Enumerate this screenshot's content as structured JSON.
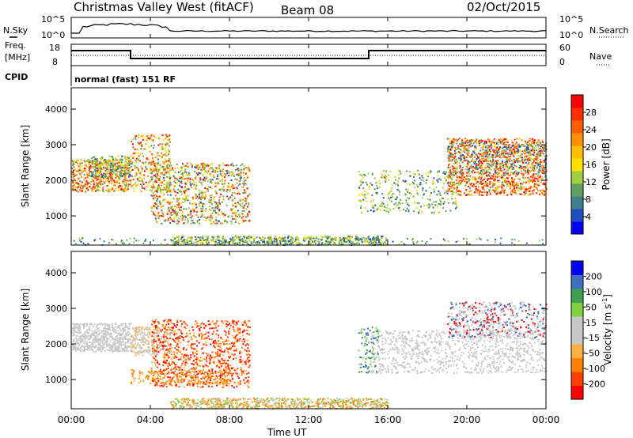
{
  "header": {
    "station": "Christmas Valley West (fitACF)",
    "beam": "Beam 08",
    "date": "02/Oct/2015"
  },
  "summary": {
    "nsky_label": "N.Sky",
    "nsearch_label": "N.Search",
    "nsky_ticks": [
      "10^5",
      "10^0"
    ],
    "nsearch_ticks": [
      "10^5",
      "10^0"
    ],
    "freq_label_1": "Freq.",
    "freq_label_2": "[MHz]",
    "freq_ticks": [
      "18",
      "8"
    ],
    "nave_label": "Nave",
    "nave_ticks": [
      "60",
      "0"
    ],
    "cpid_label": "CPID",
    "cpid_value": "normal (fast) 151 RF"
  },
  "chart_data": [
    {
      "type": "heatmap",
      "name": "power",
      "ylabel": "Slant Range [km]",
      "ytick_labels": [
        "4000",
        "3000",
        "2000",
        "1000"
      ],
      "yticks": [
        4000,
        3000,
        2000,
        1000
      ],
      "ylim": [
        180,
        4600
      ],
      "xlim": [
        "00:00",
        "24:00"
      ],
      "colorbar": {
        "label": "Power [dB]",
        "tick_labels": [
          "28",
          "24",
          "20",
          "16",
          "12",
          "8",
          "4"
        ],
        "colors": [
          "#0000ff",
          "#1f4fbf",
          "#3f7f8f",
          "#5f9f5f",
          "#9fcf3f",
          "#ffe000",
          "#ffbf00",
          "#ff8f00",
          "#ff5f00",
          "#ff2f00",
          "#ff0000"
        ]
      }
    },
    {
      "type": "heatmap",
      "name": "velocity",
      "ylabel": "Slant Range [km]",
      "ytick_labels": [
        "4000",
        "3000",
        "2000",
        "1000"
      ],
      "yticks": [
        4000,
        3000,
        2000,
        1000
      ],
      "ylim": [
        180,
        4600
      ],
      "xlim": [
        "00:00",
        "24:00"
      ],
      "colorbar": {
        "label": "Velocity [m s",
        "label_sup": "-1",
        "label_end": "]",
        "tick_labels": [
          "200",
          "100",
          "50",
          "15",
          "-15",
          "-50",
          "-100",
          "-200"
        ],
        "colors": [
          "#ff0000",
          "#ff4000",
          "#ff8000",
          "#ffb040",
          "#c8c8c8",
          "#c8c8c8",
          "#80d040",
          "#40a050",
          "#3f6fbf",
          "#0000ff"
        ]
      }
    }
  ],
  "x_axis": {
    "label": "Time UT",
    "ticks": [
      "00:00",
      "04:00",
      "08:00",
      "12:00",
      "16:00",
      "20:00",
      "00:00"
    ]
  },
  "colors": {
    "gray_scatter": "#c8c8c8",
    "red": "#ff0000",
    "orange": "#ff8c00",
    "yellow": "#ffd800",
    "green": "#4f9f4f",
    "blue": "#2050c0"
  }
}
